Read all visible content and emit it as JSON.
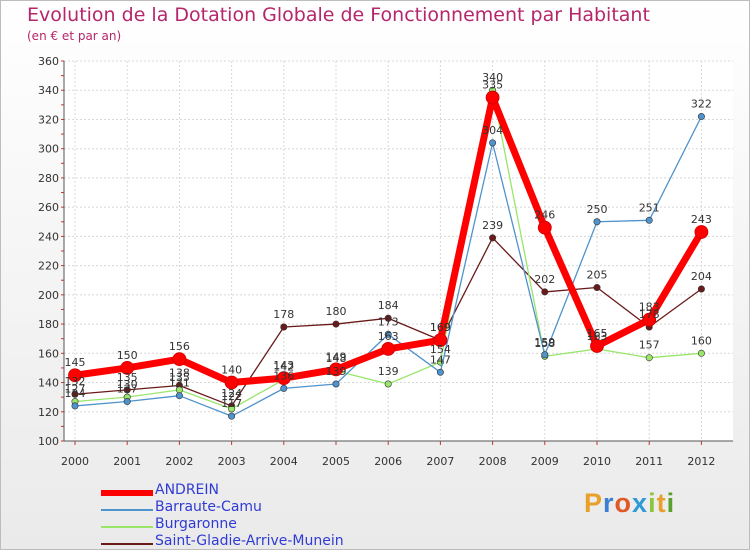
{
  "header": {
    "title": "Evolution de la Dotation Globale de Fonctionnement par Habitant",
    "subtitle": "(en € et par an)"
  },
  "logo": {
    "text": "Proxiti"
  },
  "chart_data": {
    "type": "line",
    "title": "Evolution de la Dotation Globale de Fonctionnement par Habitant",
    "subtitle": "(en € et par an)",
    "xlabel": "",
    "ylabel": "",
    "x": [
      "2000",
      "2001",
      "2002",
      "2003",
      "2004",
      "2005",
      "2006",
      "2007",
      "2008",
      "2009",
      "2010",
      "2011",
      "2012"
    ],
    "ylim": [
      100,
      360
    ],
    "yticks": [
      100,
      120,
      140,
      160,
      180,
      200,
      220,
      240,
      260,
      280,
      300,
      320,
      340,
      360
    ],
    "grid": true,
    "legend_position": "bottom-left",
    "series": [
      {
        "name": "Saint-Gladie-Arrive-Munein",
        "color": "#6b1a1a",
        "values": [
          132,
          135,
          138,
          124,
          178,
          180,
          184,
          169,
          239,
          202,
          205,
          178,
          204
        ],
        "labels": [
          "132",
          "135",
          "138",
          "124",
          "178",
          "180",
          "184",
          "169",
          "239",
          "202",
          "205",
          "178",
          "204"
        ]
      },
      {
        "name": "Burgaronne",
        "color": "#99e66b",
        "values": [
          127,
          130,
          135,
          122,
          142,
          148,
          139,
          154,
          340,
          158,
          163,
          157,
          160
        ],
        "labels": [
          "127",
          "130",
          "135",
          "122",
          "142",
          "148",
          "139",
          "154",
          "340",
          "158",
          "163",
          "157",
          "160"
        ]
      },
      {
        "name": "Barraute-Camu",
        "color": "#4f93cc",
        "values": [
          124,
          127,
          131,
          117,
          136,
          139,
          173,
          147,
          304,
          159,
          250,
          251,
          322
        ],
        "labels": [
          "124",
          "127",
          "131",
          "117",
          "136",
          "139",
          "173",
          "147",
          "304",
          "159",
          "250",
          "251",
          "322"
        ]
      },
      {
        "name": "ANDREIN",
        "color": "#ff0000",
        "values": [
          145,
          150,
          156,
          140,
          143,
          149,
          163,
          169,
          335,
          246,
          165,
          183,
          243
        ],
        "labels": [
          "145",
          "150",
          "156",
          "140",
          "143",
          "149",
          "163",
          "169",
          "335",
          "246",
          "165",
          "183",
          "243"
        ]
      }
    ],
    "legend": [
      "ANDREIN",
      "Barraute-Camu",
      "Burgaronne",
      "Saint-Gladie-Arrive-Munein"
    ]
  }
}
